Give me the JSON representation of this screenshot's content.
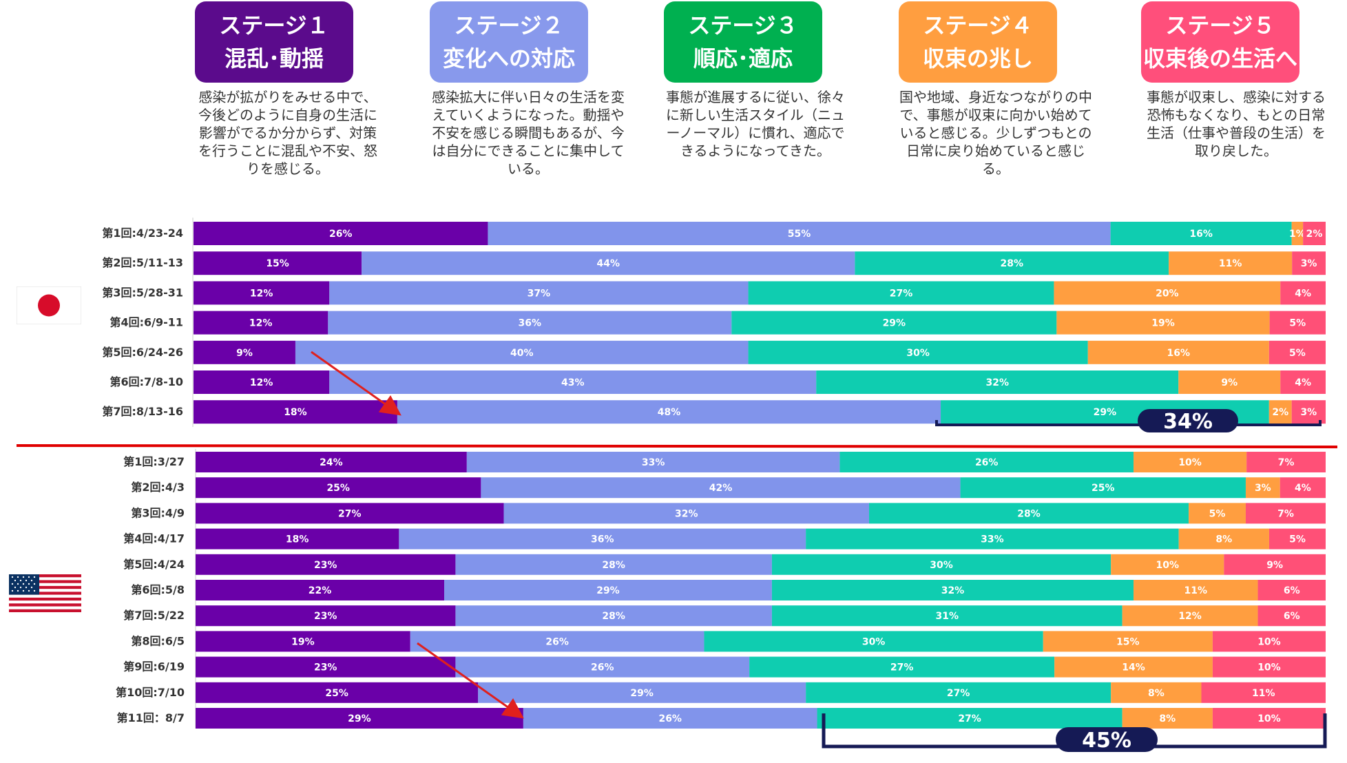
{
  "stages": [
    {
      "line1": "ステージ１",
      "line2": "混乱･動揺",
      "color": "#5b0b8c",
      "desc": "感染が拡がりをみせる中で、今後どのように自身の生活に影響がでるか分からず、対策を行うことに混乱や不安、怒りを感じる。"
    },
    {
      "line1": "ステージ２",
      "line2": "変化への対応",
      "color": "#8899ec",
      "desc": "感染拡大に伴い日々の生活を変えていくようになった。動揺や不安を感じる瞬間もあるが、今は自分にできることに集中している。"
    },
    {
      "line1": "ステージ３",
      "line2": "順応･適応",
      "color": "#00b050",
      "desc": "事態が進展するに従い、徐々に新しい生活スタイル（ニューノーマル）に慣れ、適応できるようになってきた。"
    },
    {
      "line1": "ステージ４",
      "line2": "収束の兆し",
      "color": "#ff9e40",
      "desc": "国や地域、身近なつながりの中で、事態が収束に向かい始めていると感じる。少しずつもとの日常に戻り始めていると感じる。"
    },
    {
      "line1": "ステージ５",
      "line2": "収束後の生活へ",
      "color": "#ff4f7b",
      "desc": "事態が収束し、感染に対する恐怖もなくなり、もとの日常生活（仕事や普段の生活）を取り戻した。"
    }
  ],
  "colors": {
    "stage1": "#6a00a8",
    "stage2": "#8194eb",
    "stage3": "#0fcdb0",
    "stage4": "#ff9e40",
    "stage5": "#ff5077",
    "divider": "#e00000",
    "arrow": "#e0201d",
    "bracket": "#151a55"
  },
  "chart_data": [
    {
      "type": "bar",
      "orientation": "horizontal",
      "stacked": true,
      "country": "Japan",
      "categories": [
        "第1回:4/23-24",
        "第2回:5/11-13",
        "第3回:5/28-31",
        "第4回:6/9-11",
        "第5回:6/24-26",
        "第6回:7/8-10",
        "第7回:8/13-16"
      ],
      "series": [
        {
          "name": "ステージ１",
          "values": [
            26,
            15,
            12,
            12,
            9,
            12,
            18
          ]
        },
        {
          "name": "ステージ２",
          "values": [
            55,
            44,
            37,
            36,
            40,
            43,
            48
          ]
        },
        {
          "name": "ステージ３",
          "values": [
            16,
            28,
            27,
            29,
            30,
            32,
            29
          ]
        },
        {
          "name": "ステージ４",
          "values": [
            1,
            11,
            20,
            19,
            16,
            9,
            2
          ]
        },
        {
          "name": "ステージ５",
          "values": [
            2,
            3,
            4,
            5,
            5,
            4,
            3
          ]
        }
      ],
      "callout": "34%"
    },
    {
      "type": "bar",
      "orientation": "horizontal",
      "stacked": true,
      "country": "USA",
      "categories": [
        "第1回:3/27",
        "第2回:4/3",
        "第3回:4/9",
        "第4回:4/17",
        "第5回:4/24",
        "第6回:5/8",
        "第7回:5/22",
        "第8回:6/5",
        "第9回:6/19",
        "第10回:7/10",
        "第11回：8/7"
      ],
      "series": [
        {
          "name": "ステージ１",
          "values": [
            24,
            25,
            27,
            18,
            23,
            22,
            23,
            19,
            23,
            25,
            29
          ]
        },
        {
          "name": "ステージ２",
          "values": [
            33,
            42,
            32,
            36,
            28,
            29,
            28,
            26,
            26,
            29,
            26
          ]
        },
        {
          "name": "ステージ３",
          "values": [
            26,
            25,
            28,
            33,
            30,
            32,
            31,
            30,
            27,
            27,
            27
          ]
        },
        {
          "name": "ステージ４",
          "values": [
            10,
            3,
            5,
            8,
            10,
            11,
            12,
            15,
            14,
            8,
            8
          ]
        },
        {
          "name": "ステージ５",
          "values": [
            7,
            4,
            7,
            5,
            9,
            6,
            6,
            10,
            10,
            11,
            10
          ]
        }
      ],
      "callout": "45%"
    }
  ]
}
